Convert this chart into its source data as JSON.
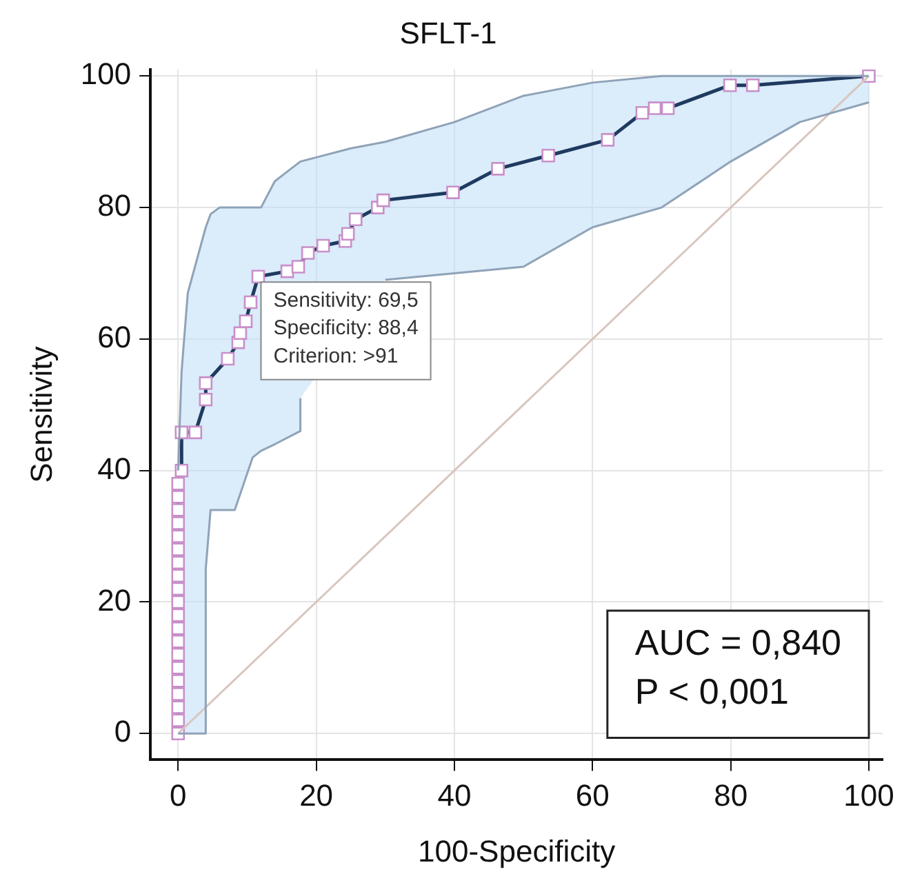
{
  "chart_data": {
    "type": "line",
    "title": "SFLT-1",
    "xlabel": "100-Specificity",
    "ylabel": "Sensitivity",
    "xlim": [
      -4,
      102
    ],
    "ylim": [
      -4,
      101
    ],
    "xticks": [
      0,
      20,
      40,
      60,
      80,
      100
    ],
    "yticks": [
      0,
      20,
      40,
      60,
      80,
      100
    ],
    "grid": true,
    "legend": false,
    "marker": "square",
    "line_style": "solid",
    "series": [
      {
        "type": "line",
        "color": "#8fa3b8",
        "marker": "none",
        "x": [
          0,
          0.5,
          1.4,
          4,
          4,
          4.7,
          6,
          8.2,
          10.8,
          12,
          14,
          17.7,
          17.7,
          25,
          30,
          40,
          50,
          60,
          70,
          80,
          90,
          100
        ],
        "values": [
          40,
          55,
          67,
          77,
          77,
          79,
          80,
          80,
          80,
          80,
          84,
          87,
          87,
          89,
          90,
          93,
          97,
          99,
          100,
          100,
          100,
          100
        ]
      },
      {
        "type": "line",
        "color": "#8fa3b8",
        "marker": "none",
        "x": [
          0,
          0.5,
          1.4,
          4,
          4,
          4.7,
          6,
          8.2,
          10.8,
          12,
          14,
          17.7,
          17.7,
          25,
          30,
          40,
          50,
          60,
          70,
          80,
          90,
          100
        ],
        "values": [
          0,
          0,
          0,
          0,
          25,
          34,
          34,
          34,
          42,
          43,
          44,
          46,
          51,
          null,
          69,
          70,
          71,
          77,
          80,
          87,
          93,
          96
        ]
      },
      {
        "type": "line",
        "color": "#d8c6be",
        "marker": "none",
        "x": [
          0,
          100
        ],
        "values": [
          0,
          100
        ]
      },
      {
        "type": "line",
        "color": "#1f3a5f",
        "x": [
          0,
          0,
          0,
          0,
          0,
          0,
          0,
          0,
          0,
          0,
          0,
          0,
          0,
          0,
          0,
          0,
          0,
          0,
          0,
          0,
          0.5,
          0.5,
          2.5,
          4,
          4,
          7.2,
          8.7,
          9,
          9.8,
          10.5,
          11.6,
          15.8,
          17.4,
          18.8,
          21,
          24.2,
          24.6,
          25.7,
          28.9,
          29.7,
          39.8,
          46.3,
          53.6,
          62.2,
          67.2,
          69,
          70.9,
          79.9,
          83.2,
          100
        ],
        "values": [
          0,
          2,
          4,
          6,
          8,
          10,
          12,
          14,
          16,
          18,
          20,
          22,
          24,
          26,
          28,
          30,
          32,
          34,
          36,
          38,
          40,
          45.8,
          45.8,
          50.8,
          53.3,
          57,
          59.5,
          60.9,
          62.7,
          65.6,
          69.5,
          70.3,
          71,
          73.1,
          74.2,
          74.9,
          76,
          78.2,
          80,
          81.1,
          82.3,
          85.9,
          87.9,
          90.3,
          94.4,
          95.1,
          95.1,
          98.6,
          98.6,
          100
        ]
      }
    ],
    "annotations": [
      {
        "text": "Sensitivity: 69,5\nSpecificity: 88,4\nCriterion: >91",
        "x": 11.6,
        "y": 69.5
      },
      "AUC = 0,840\nP < 0,001"
    ]
  }
}
